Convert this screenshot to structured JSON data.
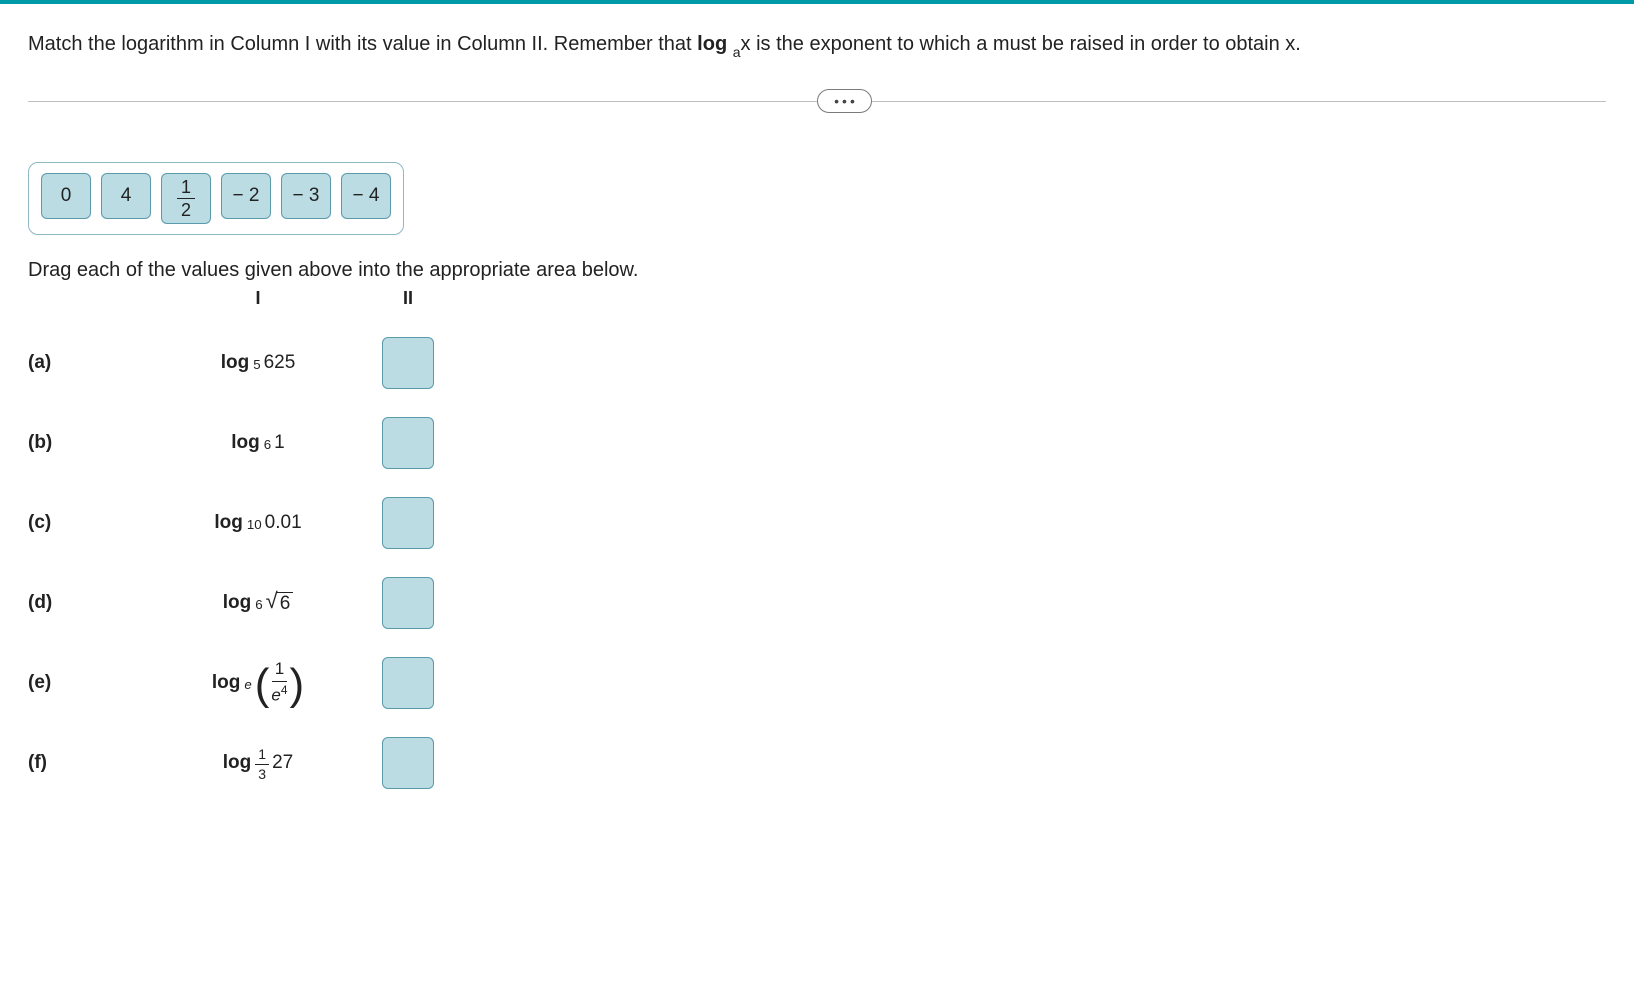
{
  "colors": {
    "topbar": "#0099a8",
    "chip_bg": "#bcdce4",
    "chip_border": "#5a9aab",
    "divider": "#bfbfbf",
    "text": "#222222",
    "background": "#ffffff"
  },
  "question": {
    "prefix": "Match the logarithm in Column I with its value in Column II. Remember that ",
    "log_label": "log",
    "base": "a",
    "arg": "x",
    "suffix": " is the exponent to which a must be raised in order to obtain x."
  },
  "ellipsis": "•••",
  "chips": {
    "plain": [
      "0",
      "4"
    ],
    "fraction": {
      "num": "1",
      "den": "2"
    },
    "plain_after": [
      "− 2",
      "− 3",
      "− 4"
    ]
  },
  "instruction": "Drag each of the values given above into the appropriate area below.",
  "columns": {
    "col1": "I",
    "col2": "II"
  },
  "rows": {
    "a": {
      "label": "(a)",
      "log": "log",
      "base": "5",
      "arg": "625"
    },
    "b": {
      "label": "(b)",
      "log": "log",
      "base": "6",
      "arg": "1"
    },
    "c": {
      "label": "(c)",
      "log": "log",
      "base": "10",
      "arg": "0.01"
    },
    "d": {
      "label": "(d)",
      "log": "log",
      "base": "6",
      "sqrt_arg": "6"
    },
    "e": {
      "label": "(e)",
      "log": "log",
      "base_italic": "e",
      "paren_frac": {
        "num": "1",
        "den_base": "e",
        "den_sup": "4"
      },
      "lparen": "(",
      "rparen": ")"
    },
    "f": {
      "label": "(f)",
      "log": "log",
      "base_frac": {
        "num": "1",
        "den": "3"
      },
      "arg": "27"
    }
  }
}
